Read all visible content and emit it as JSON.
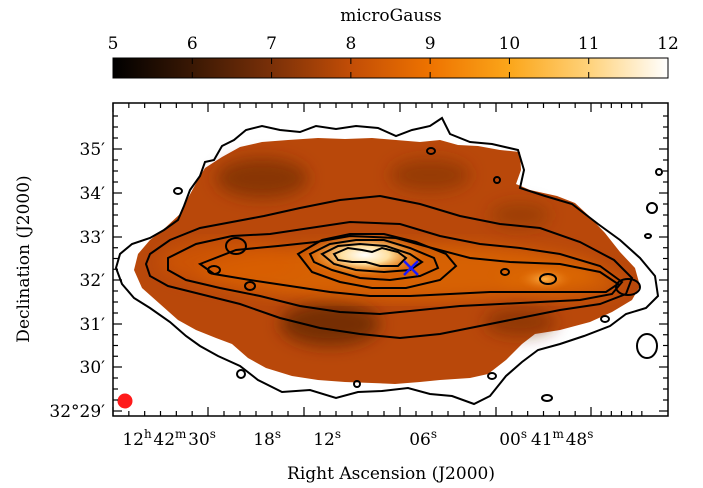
{
  "chart_data": {
    "type": "heatmap",
    "colorbar": {
      "label": "microGauss",
      "min": 5,
      "max": 12,
      "ticks": [
        "5",
        "6",
        "7",
        "8",
        "9",
        "10",
        "11",
        "12"
      ],
      "colormap": [
        "#000000",
        "#3a1804",
        "#7a3008",
        "#c24d06",
        "#ee7300",
        "#fba61a",
        "#ffd27a",
        "#ffffff"
      ]
    },
    "xlabel": "Right Ascension (J2000)",
    "ylabel": "Declination (J2000)",
    "xticks": [
      {
        "h": "12",
        "m": "42",
        "s": "30",
        "label": "12h42m30s"
      },
      {
        "s": "18",
        "label": "18s"
      },
      {
        "s": "12",
        "label": "12s"
      },
      {
        "s": "06",
        "label": "06s"
      },
      {
        "s": "00",
        "label": "00s"
      },
      {
        "m": "41",
        "s": "48",
        "label": "41m48s"
      }
    ],
    "yticks": [
      {
        "text": "32°29′"
      },
      {
        "text": "30′"
      },
      {
        "text": "31′"
      },
      {
        "text": "32′"
      },
      {
        "text": "33′"
      },
      {
        "text": "34′"
      },
      {
        "text": "35′"
      }
    ],
    "markers": [
      {
        "name": "nucleus",
        "symbol": "x",
        "color": "#1a1aff"
      },
      {
        "name": "beam",
        "symbol": "filled-circle",
        "color": "#ff1a1a"
      }
    ],
    "contours": {
      "color": "#000000",
      "levels_drawn": 8
    },
    "grid": false
  }
}
